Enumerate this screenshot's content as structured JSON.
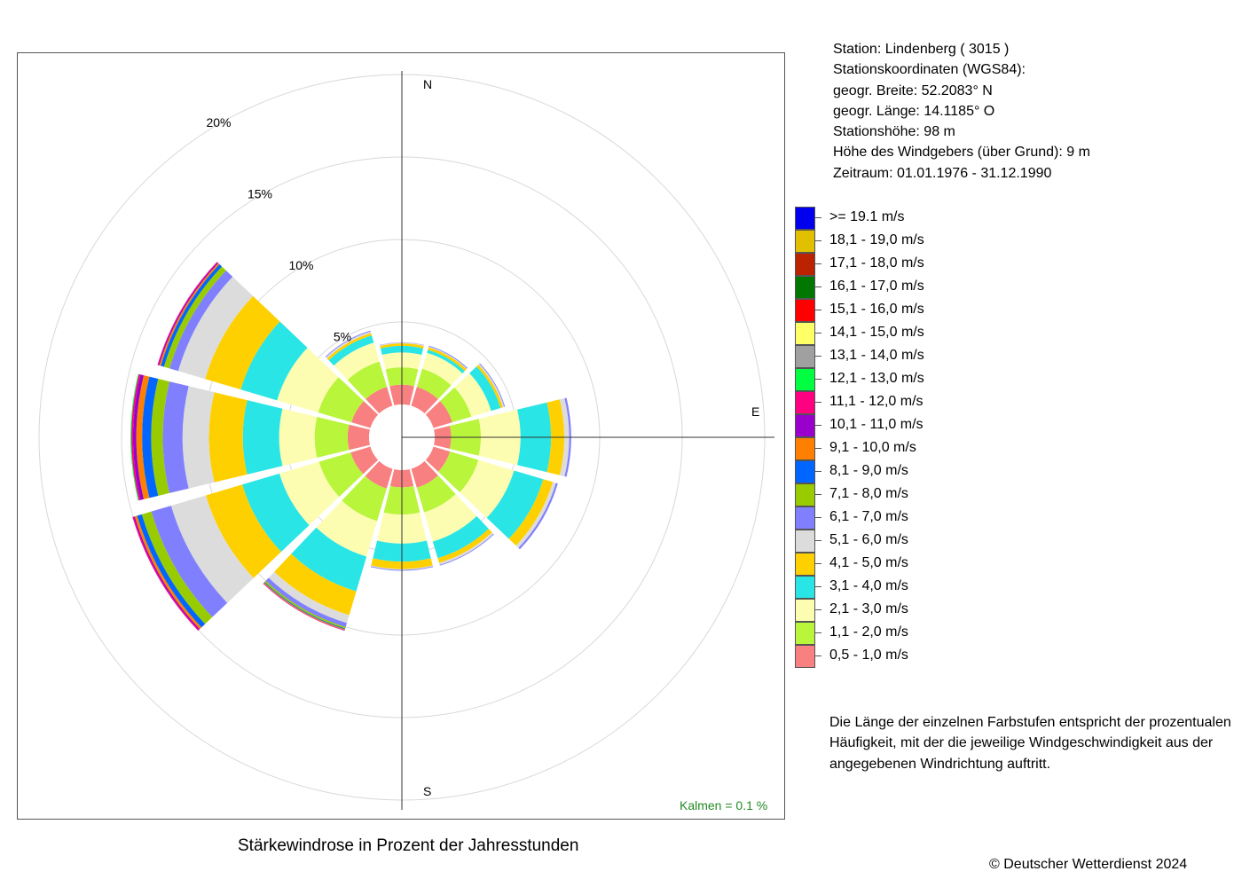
{
  "chart_data": {
    "type": "wind-rose",
    "title": "Stärkewindrose in Prozent der Jahresstunden",
    "radial_unit": "%",
    "radial_ticks": [
      {
        "value": 5,
        "label": "5%"
      },
      {
        "value": 10,
        "label": "10%"
      },
      {
        "value": 15,
        "label": "15%"
      },
      {
        "value": 20,
        "label": "20%"
      }
    ],
    "compass_labels": {
      "north": "N",
      "east": "E",
      "south": "S"
    },
    "calm": {
      "label": "Kalmen  =  0.1 %",
      "value": 0.1
    },
    "speed_classes": [
      {
        "label": "0,5 - 1,0 m/s",
        "color": "#f98080"
      },
      {
        "label": "1,1 - 2,0 m/s",
        "color": "#b9f53b"
      },
      {
        "label": "2,1 - 3,0 m/s",
        "color": "#fdfdb2"
      },
      {
        "label": "3,1 - 4,0 m/s",
        "color": "#2ae5e5"
      },
      {
        "label": "4,1 - 5,0 m/s",
        "color": "#ffd000"
      },
      {
        "label": "5,1 - 6,0 m/s",
        "color": "#dcdcdc"
      },
      {
        "label": "6,1 - 7,0 m/s",
        "color": "#8080ff"
      },
      {
        "label": "7,1 - 8,0 m/s",
        "color": "#99cc00"
      },
      {
        "label": "8,1 - 9,0 m/s",
        "color": "#0066ff"
      },
      {
        "label": "9,1 - 10,0 m/s",
        "color": "#ff8000"
      },
      {
        "label": "10,1 - 11,0 m/s",
        "color": "#9900cc"
      },
      {
        "label": "11,1 - 12,0 m/s",
        "color": "#ff0080"
      },
      {
        "label": "12,1 - 13,0 m/s",
        "color": "#00ff40"
      },
      {
        "label": "13,1 - 14,0 m/s",
        "color": "#a0a0a0"
      },
      {
        "label": "14,1 - 15,0 m/s",
        "color": "#ffff66"
      },
      {
        "label": "15,1 - 16,0 m/s",
        "color": "#ff0000"
      },
      {
        "label": "16,1 - 17,0 m/s",
        "color": "#007700"
      },
      {
        "label": "17,1 - 18,0 m/s",
        "color": "#bb2200"
      },
      {
        "label": "18,1 - 19,0 m/s",
        "color": "#e0c000"
      },
      {
        "label": ">= 19.1 m/s",
        "color": "#0000ee"
      }
    ],
    "sectors": [
      {
        "direction_deg": 0,
        "values": [
          1.2,
          1.05,
          0.9,
          0.4,
          0.15,
          0.05,
          0.02
        ]
      },
      {
        "direction_deg": 30,
        "values": [
          1.2,
          1.15,
          1.0,
          0.2,
          0.15,
          0.05,
          0.05
        ]
      },
      {
        "direction_deg": 60,
        "values": [
          1.2,
          1.2,
          1.25,
          0.6,
          0.15,
          0.08,
          0.05
        ]
      },
      {
        "direction_deg": 90,
        "values": [
          1.0,
          1.8,
          2.4,
          1.85,
          0.8,
          0.3,
          0.12
        ]
      },
      {
        "direction_deg": 120,
        "values": [
          1.05,
          1.8,
          2.25,
          1.85,
          0.6,
          0.2,
          0.12
        ]
      },
      {
        "direction_deg": 150,
        "values": [
          1.2,
          1.55,
          1.85,
          1.05,
          0.3,
          0.12,
          0.05
        ]
      },
      {
        "direction_deg": 180,
        "values": [
          1.05,
          1.65,
          1.75,
          1.1,
          0.45,
          0.05,
          0.05
        ]
      },
      {
        "direction_deg": 210,
        "values": [
          1.25,
          2.05,
          2.25,
          2.2,
          1.5,
          0.5,
          0.25,
          0.1,
          0.05,
          0.05,
          0.02,
          0.02
        ]
      },
      {
        "direction_deg": 240,
        "values": [
          1.25,
          2.0,
          2.5,
          2.35,
          2.3,
          2.2,
          1.25,
          0.6,
          0.3,
          0.15,
          0.08,
          0.06
        ]
      },
      {
        "direction_deg": 270,
        "values": [
          1.3,
          2.0,
          2.15,
          2.2,
          2.05,
          1.6,
          1.2,
          0.7,
          0.55,
          0.35,
          0.2,
          0.1,
          0.05
        ]
      },
      {
        "direction_deg": 300,
        "values": [
          1.2,
          2.1,
          2.6,
          2.3,
          2.25,
          1.7,
          0.55,
          0.35,
          0.2,
          0.1,
          0.07,
          0.04
        ]
      },
      {
        "direction_deg": 330,
        "values": [
          1.2,
          1.6,
          1.2,
          0.45,
          0.15,
          0.1,
          0.05
        ]
      }
    ]
  },
  "station": {
    "station_line": "Station:  Lindenberg  ( 3015 )",
    "coords_heading": "Stationskoordinaten (WGS84):",
    "latitude_line": "geogr. Breite: 52.2083° N",
    "longitude_line": "geogr. Länge: 14.1185° O",
    "elevation_line": "Stationshöhe: 98 m",
    "sensor_height_line": "Höhe des Windgebers (über Grund): 9 m",
    "period_line": "Zeitraum: 01.01.1976 - 31.12.1990"
  },
  "legend_display": [
    {
      "label": ">= 19.1 m/s",
      "color": "#0000ee"
    },
    {
      "label": "18,1 - 19,0 m/s",
      "color": "#e0c000"
    },
    {
      "label": "17,1 - 18,0 m/s",
      "color": "#bb2200"
    },
    {
      "label": "16,1 - 17,0 m/s",
      "color": "#007700"
    },
    {
      "label": "15,1 - 16,0 m/s",
      "color": "#ff0000"
    },
    {
      "label": "14,1 - 15,0 m/s",
      "color": "#ffff66"
    },
    {
      "label": "13,1 - 14,0 m/s",
      "color": "#a0a0a0"
    },
    {
      "label": "12,1 - 13,0 m/s",
      "color": "#00ff40"
    },
    {
      "label": "11,1 - 12,0 m/s",
      "color": "#ff0080"
    },
    {
      "label": "10,1 - 11,0 m/s",
      "color": "#9900cc"
    },
    {
      "label": "9,1 - 10,0 m/s",
      "color": "#ff8000"
    },
    {
      "label": "8,1 - 9,0 m/s",
      "color": "#0066ff"
    },
    {
      "label": "7,1 - 8,0 m/s",
      "color": "#99cc00"
    },
    {
      "label": "6,1 - 7,0 m/s",
      "color": "#8080ff"
    },
    {
      "label": "5,1 - 6,0 m/s",
      "color": "#dcdcdc"
    },
    {
      "label": "4,1 - 5,0 m/s",
      "color": "#ffd000"
    },
    {
      "label": "3,1 - 4,0 m/s",
      "color": "#2ae5e5"
    },
    {
      "label": "2,1 - 3,0 m/s",
      "color": "#fdfdb2"
    },
    {
      "label": "1,1 - 2,0 m/s",
      "color": "#b9f53b"
    },
    {
      "label": "0,5 - 1,0 m/s",
      "color": "#f98080"
    }
  ],
  "explanation": "Die Länge der einzelnen Farbstufen entspricht der prozentualen Häufigkeit, mit der die jeweilige Windgeschwindigkeit aus der angegebenen Windrichtung auftritt.",
  "copyright": "© Deutscher Wetterdienst  2024"
}
